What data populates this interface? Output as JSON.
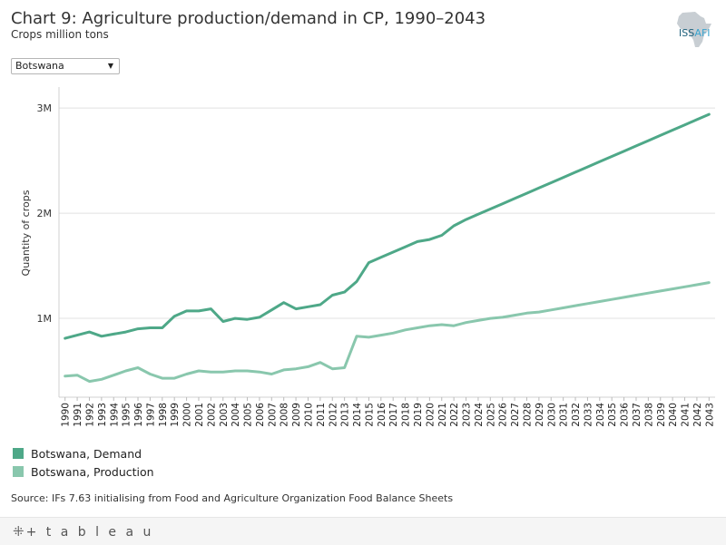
{
  "header": {
    "title": "Chart 9: Agriculture production/demand in CP, 1990–2043",
    "subtitle": "Crops million tons"
  },
  "logo": {
    "text": "ISS",
    "suffix": "AFI"
  },
  "filter": {
    "selected": "Botswana"
  },
  "footer": {
    "source": "Source: IFs 7.63 initialising from Food and Agriculture Organization Food Balance Sheets",
    "brand": "+ t a b l e a u"
  },
  "colors": {
    "demand": "#4ea888",
    "production": "#89c7ad",
    "grid": "#e0e0e0"
  },
  "chart_data": {
    "type": "line",
    "title": "Chart 9: Agriculture production/demand in CP, 1990–2043",
    "subtitle": "Crops million tons",
    "xlabel": "",
    "ylabel": "Quantity of crops",
    "ylim": [
      0.25,
      3.2
    ],
    "yticks": [
      1,
      2,
      3
    ],
    "ytick_labels": [
      "1M",
      "2M",
      "3M"
    ],
    "grid": true,
    "legend_position": "bottom-left",
    "x": [
      1990,
      1991,
      1992,
      1993,
      1994,
      1995,
      1996,
      1997,
      1998,
      1999,
      2000,
      2001,
      2002,
      2003,
      2004,
      2005,
      2006,
      2007,
      2008,
      2009,
      2010,
      2011,
      2012,
      2013,
      2014,
      2015,
      2016,
      2017,
      2018,
      2019,
      2020,
      2021,
      2022,
      2023,
      2024,
      2025,
      2026,
      2027,
      2028,
      2029,
      2030,
      2031,
      2032,
      2033,
      2034,
      2035,
      2036,
      2037,
      2038,
      2039,
      2040,
      2041,
      2042,
      2043
    ],
    "series": [
      {
        "name": "Botswana, Demand",
        "values": [
          0.81,
          0.84,
          0.87,
          0.83,
          0.85,
          0.87,
          0.9,
          0.91,
          0.91,
          1.02,
          1.07,
          1.07,
          1.09,
          0.97,
          1.0,
          0.99,
          1.01,
          1.08,
          1.15,
          1.09,
          1.11,
          1.13,
          1.22,
          1.25,
          1.35,
          1.53,
          1.58,
          1.63,
          1.68,
          1.73,
          1.75,
          1.79,
          1.88,
          1.94,
          1.99,
          2.04,
          2.09,
          2.14,
          2.19,
          2.24,
          2.29,
          2.34,
          2.39,
          2.44,
          2.49,
          2.54,
          2.59,
          2.64,
          2.69,
          2.74,
          2.79,
          2.84,
          2.89,
          2.94
        ]
      },
      {
        "name": "Botswana, Production",
        "values": [
          0.45,
          0.46,
          0.4,
          0.42,
          0.46,
          0.5,
          0.53,
          0.47,
          0.43,
          0.43,
          0.47,
          0.5,
          0.49,
          0.49,
          0.5,
          0.5,
          0.49,
          0.47,
          0.51,
          0.52,
          0.54,
          0.58,
          0.52,
          0.53,
          0.83,
          0.82,
          0.84,
          0.86,
          0.89,
          0.91,
          0.93,
          0.94,
          0.93,
          0.96,
          0.98,
          1.0,
          1.01,
          1.03,
          1.05,
          1.06,
          1.08,
          1.1,
          1.12,
          1.14,
          1.16,
          1.18,
          1.2,
          1.22,
          1.24,
          1.26,
          1.28,
          1.3,
          1.32,
          1.34
        ]
      }
    ]
  }
}
